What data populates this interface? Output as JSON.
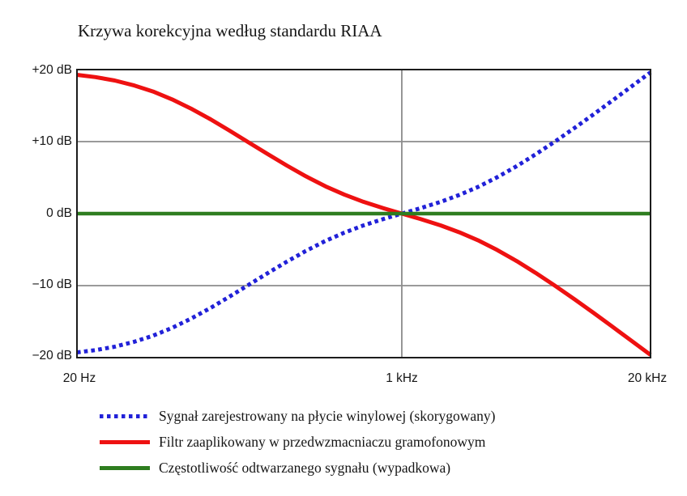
{
  "title": "Krzywa korekcyjna według standardu RIAA",
  "colors": {
    "blue": "#2121d8",
    "red": "#ee1111",
    "green": "#2e7d1f",
    "grid": "#8c8c8c",
    "spine": "#1c1c1c"
  },
  "y_axis": {
    "labels": [
      "+20 dB",
      "+10 dB",
      "0 dB",
      "−10 dB",
      "−20 dB"
    ],
    "values": [
      20,
      10,
      0,
      -10,
      -20
    ]
  },
  "x_axis": {
    "labels": [
      "20 Hz",
      "1 kHz",
      "20 kHz"
    ],
    "values": [
      20,
      1000,
      20000
    ]
  },
  "chart_data": {
    "type": "line",
    "title": "Krzywa korekcyjna według standardu RIAA",
    "x_scale": "log",
    "xlim": [
      20,
      20000
    ],
    "ylim": [
      -20,
      20
    ],
    "grid": {
      "y_values": [
        10,
        0,
        -10
      ],
      "x_values": [
        1000
      ]
    },
    "legend_position": "bottom",
    "x": [
      20,
      25,
      31.5,
      40,
      50,
      63,
      80,
      100,
      125,
      160,
      200,
      250,
      315,
      400,
      500,
      630,
      800,
      1000,
      1250,
      1600,
      2000,
      2500,
      3150,
      4000,
      5000,
      6300,
      8000,
      10000,
      12500,
      16000,
      20000
    ],
    "series": [
      {
        "name": "Sygnał zarejestrowany na płycie winylowej (skorygowany)",
        "color_key": "blue",
        "style": "dotted",
        "values": [
          -19.27,
          -18.95,
          -18.48,
          -17.79,
          -16.95,
          -15.85,
          -14.51,
          -13.09,
          -11.56,
          -9.81,
          -8.22,
          -6.68,
          -5.18,
          -3.78,
          -2.65,
          -1.64,
          -0.75,
          0.0,
          0.74,
          1.64,
          2.59,
          3.7,
          5.04,
          6.61,
          8.21,
          9.98,
          11.89,
          13.73,
          15.61,
          17.71,
          19.62
        ]
      },
      {
        "name": "Filtr zaaplikowany w przedwzmacniaczu gramofonowym",
        "color_key": "red",
        "style": "solid",
        "values": [
          19.27,
          18.95,
          18.48,
          17.79,
          16.95,
          15.85,
          14.51,
          13.09,
          11.56,
          9.81,
          8.22,
          6.68,
          5.18,
          3.78,
          2.65,
          1.64,
          0.75,
          0.0,
          -0.74,
          -1.64,
          -2.59,
          -3.7,
          -5.04,
          -6.61,
          -8.21,
          -9.98,
          -11.89,
          -13.73,
          -15.61,
          -17.71,
          -19.62
        ]
      },
      {
        "name": "Częstotliwość odtwarzanego sygnału (wypadkowa)",
        "color_key": "green",
        "style": "solid",
        "values": [
          0,
          0,
          0,
          0,
          0,
          0,
          0,
          0,
          0,
          0,
          0,
          0,
          0,
          0,
          0,
          0,
          0,
          0,
          0,
          0,
          0,
          0,
          0,
          0,
          0,
          0,
          0,
          0,
          0,
          0,
          0
        ]
      }
    ]
  },
  "legend": {
    "items": [
      {
        "label": "Sygnał zarejestrowany na płycie winylowej (skorygowany)",
        "color_key": "blue",
        "style": "dotted"
      },
      {
        "label": "Filtr zaaplikowany w przedwzmacniaczu gramofonowym",
        "color_key": "red",
        "style": "solid"
      },
      {
        "label": "Częstotliwość odtwarzanego sygnału (wypadkowa)",
        "color_key": "green",
        "style": "solid"
      }
    ]
  }
}
